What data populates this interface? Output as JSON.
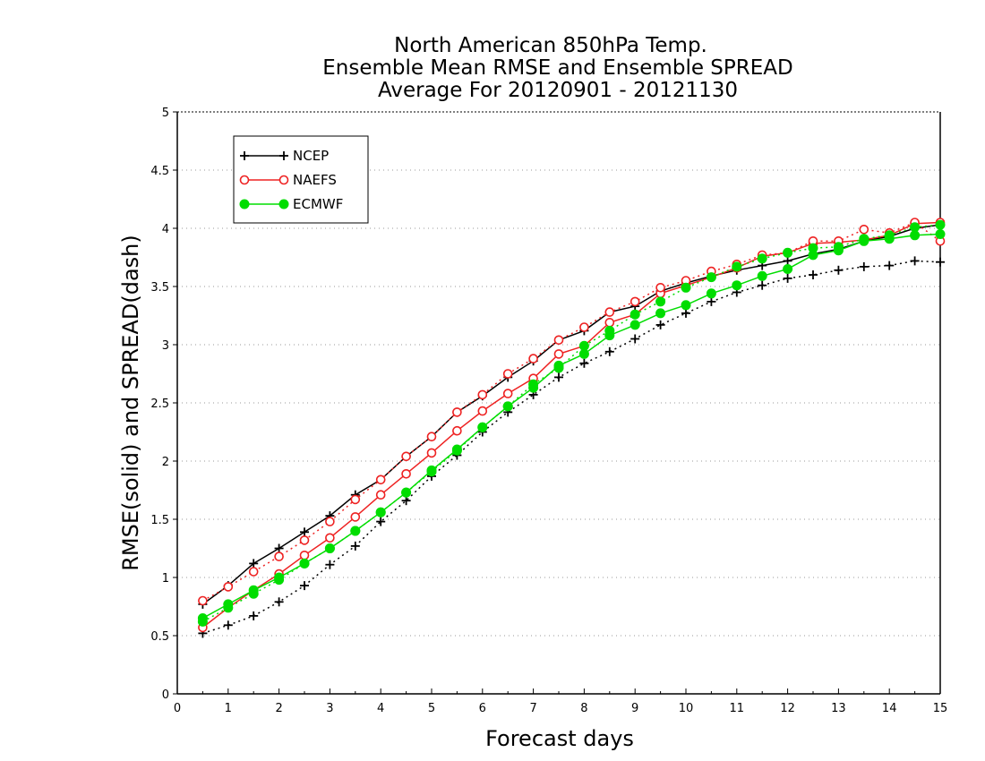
{
  "chart_data": {
    "type": "line",
    "title": [
      "North American 850hPa Temp.",
      "Ensemble Mean RMSE and Ensemble SPREAD",
      "Average For 20120901 - 20121130"
    ],
    "xlabel": "Forecast days",
    "ylabel": "RMSE(solid)  and  SPREAD(dash)",
    "xlim": [
      0,
      15
    ],
    "ylim": [
      0,
      5
    ],
    "xticks": [
      0,
      1,
      2,
      3,
      4,
      5,
      6,
      7,
      8,
      9,
      10,
      11,
      12,
      13,
      14,
      15
    ],
    "yticks": [
      0,
      0.5,
      1,
      1.5,
      2,
      2.5,
      3,
      3.5,
      4,
      4.5,
      5
    ],
    "grid": true,
    "legend_position": "top-left",
    "x": [
      0.5,
      1,
      1.5,
      2,
      2.5,
      3,
      3.5,
      4,
      4.5,
      5,
      5.5,
      6,
      6.5,
      7,
      7.5,
      8,
      8.5,
      9,
      9.5,
      10,
      10.5,
      11,
      11.5,
      12,
      12.5,
      13,
      13.5,
      14,
      14.5,
      15
    ],
    "series": [
      {
        "name": "NCEP",
        "metric": "RMSE",
        "style": "solid",
        "marker": "plus",
        "color": "#000000",
        "values": [
          0.77,
          0.93,
          1.12,
          1.25,
          1.39,
          1.53,
          1.71,
          1.84,
          2.04,
          2.21,
          2.42,
          2.56,
          2.72,
          2.86,
          3.04,
          3.12,
          3.28,
          3.33,
          3.46,
          3.53,
          3.59,
          3.64,
          3.68,
          3.72,
          3.78,
          3.82,
          3.89,
          3.93,
          4.0,
          4.03
        ]
      },
      {
        "metric": "SPREAD",
        "style": "dash",
        "marker": "plus",
        "color": "#000000",
        "values": [
          0.52,
          0.59,
          0.67,
          0.79,
          0.93,
          1.11,
          1.27,
          1.48,
          1.66,
          1.87,
          2.05,
          2.25,
          2.42,
          2.57,
          2.72,
          2.84,
          2.94,
          3.05,
          3.17,
          3.27,
          3.37,
          3.45,
          3.51,
          3.57,
          3.6,
          3.64,
          3.67,
          3.68,
          3.72,
          3.71
        ]
      },
      {
        "name": "NAEFS",
        "metric": "RMSE",
        "style": "solid",
        "marker": "open-circle",
        "color": "#ee2222",
        "values": [
          0.57,
          0.74,
          0.89,
          1.03,
          1.19,
          1.34,
          1.52,
          1.71,
          1.89,
          2.07,
          2.26,
          2.43,
          2.58,
          2.71,
          2.92,
          2.99,
          3.19,
          3.26,
          3.44,
          3.51,
          3.58,
          3.66,
          3.76,
          3.79,
          3.87,
          3.88,
          3.9,
          3.94,
          4.04,
          4.05
        ]
      },
      {
        "metric": "SPREAD",
        "style": "dash",
        "marker": "open-circle",
        "color": "#ee2222",
        "values": [
          0.8,
          0.92,
          1.05,
          1.18,
          1.32,
          1.48,
          1.67,
          1.84,
          2.04,
          2.21,
          2.42,
          2.57,
          2.75,
          2.88,
          3.04,
          3.15,
          3.28,
          3.37,
          3.49,
          3.55,
          3.63,
          3.69,
          3.77,
          3.79,
          3.89,
          3.89,
          3.99,
          3.96,
          4.05,
          3.89
        ]
      },
      {
        "name": "ECMWF",
        "metric": "RMSE",
        "style": "solid",
        "marker": "filled-circle",
        "color": "#00dd00",
        "values": [
          0.65,
          0.77,
          0.89,
          1.0,
          1.12,
          1.25,
          1.4,
          1.56,
          1.73,
          1.92,
          2.1,
          2.29,
          2.47,
          2.63,
          2.82,
          2.92,
          3.08,
          3.17,
          3.27,
          3.34,
          3.44,
          3.51,
          3.59,
          3.65,
          3.77,
          3.81,
          3.89,
          3.91,
          3.94,
          3.95
        ]
      },
      {
        "metric": "SPREAD",
        "style": "dash",
        "marker": "filled-circle",
        "color": "#00dd00",
        "values": [
          0.62,
          0.74,
          0.86,
          0.98,
          1.12,
          1.25,
          1.4,
          1.56,
          1.73,
          1.91,
          2.09,
          2.29,
          2.47,
          2.66,
          2.8,
          2.99,
          3.12,
          3.26,
          3.37,
          3.49,
          3.58,
          3.67,
          3.74,
          3.79,
          3.83,
          3.84,
          3.91,
          3.94,
          4.01,
          4.03
        ]
      }
    ]
  }
}
